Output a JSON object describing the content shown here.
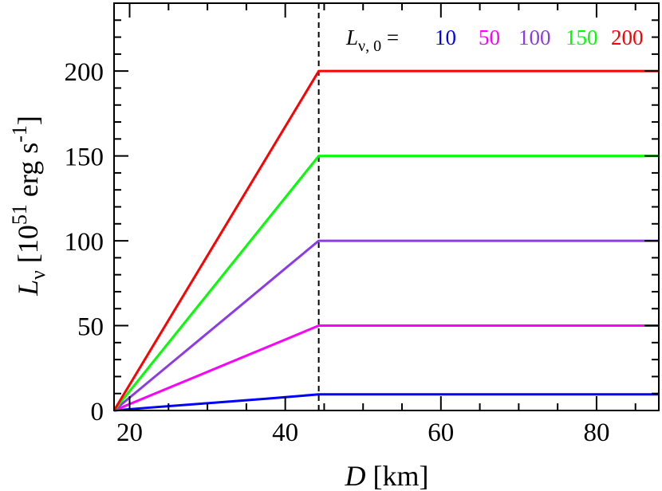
{
  "chart_data": {
    "type": "line",
    "xlabel_symbol": "D",
    "xlabel_unit": " [km]",
    "ylabel_symbol": "L",
    "ylabel_sub": "ν",
    "ylabel_unit_pre": " [10",
    "ylabel_unit_exp": "51",
    "ylabel_unit_mid": " erg s",
    "ylabel_unit_exp2": "-1",
    "ylabel_unit_end": "]",
    "xlim": [
      18,
      88
    ],
    "ylim": [
      0,
      240
    ],
    "xticks": [
      20,
      40,
      60,
      80
    ],
    "yticks": [
      0,
      50,
      100,
      150,
      200
    ],
    "x_minor_step": 5,
    "y_minor_step": 10,
    "vline_x": 44.3,
    "legend": {
      "symbol": "L",
      "sub": "ν, 0",
      "equals": " = ",
      "placement": "top-right"
    },
    "series": [
      {
        "name": "10",
        "color": "#0000ff",
        "x": [
          18,
          22,
          30,
          38,
          44.3,
          88
        ],
        "y": [
          0,
          1.5,
          4.3,
          7.1,
          9.5,
          9.5
        ]
      },
      {
        "name": "50",
        "color": "#ff00ff",
        "x": [
          18,
          26,
          34,
          40,
          44.3,
          88
        ],
        "y": [
          0,
          15.2,
          30.4,
          41.8,
          50,
          50
        ]
      },
      {
        "name": "100",
        "color": "#8c3ce6",
        "x": [
          18,
          26,
          34,
          40,
          44.3,
          88
        ],
        "y": [
          0,
          30.4,
          60.8,
          83.7,
          100,
          100
        ]
      },
      {
        "name": "150",
        "color": "#00ff00",
        "x": [
          18,
          44.3,
          88
        ],
        "y": [
          0,
          150,
          150
        ]
      },
      {
        "name": "200",
        "color": "#ff0000",
        "x": [
          18,
          44.3,
          88
        ],
        "y": [
          0,
          200,
          200
        ]
      }
    ]
  }
}
